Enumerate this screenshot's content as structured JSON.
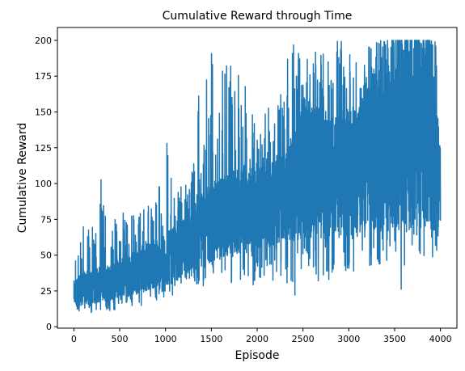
{
  "chart_data": {
    "type": "line",
    "title": "Cumulative Reward through Time",
    "xlabel": "Episode",
    "ylabel": "Cumulative Reward",
    "xlim": [
      -180,
      4180
    ],
    "ylim": [
      -1,
      209
    ],
    "x_ticks": [
      0,
      500,
      1000,
      1500,
      2000,
      2500,
      3000,
      3500,
      4000
    ],
    "y_ticks": [
      0,
      25,
      50,
      75,
      100,
      125,
      150,
      175,
      200
    ],
    "x_tick_labels": [
      "0",
      "500",
      "1000",
      "1500",
      "2000",
      "2500",
      "3000",
      "3500",
      "4000"
    ],
    "y_tick_labels": [
      "0",
      "25",
      "50",
      "75",
      "100",
      "125",
      "150",
      "175",
      "200"
    ],
    "grid": false,
    "legend": "none",
    "series": [
      {
        "color": "#1f77b4",
        "x": [
          0,
          100,
          200,
          300,
          400,
          500,
          600,
          700,
          800,
          900,
          1000,
          1100,
          1200,
          1300,
          1400,
          1500,
          1600,
          1700,
          1800,
          1900,
          2000,
          2100,
          2200,
          2300,
          2400,
          2500,
          2600,
          2700,
          2800,
          2900,
          3000,
          3100,
          3200,
          3300,
          3400,
          3500,
          3600,
          3700,
          3800,
          3900,
          4000
        ],
        "y_min": [
          10,
          9,
          9,
          10,
          11,
          12,
          13,
          14,
          16,
          18,
          20,
          22,
          24,
          26,
          28,
          22,
          23,
          24,
          25,
          26,
          30,
          31,
          33,
          35,
          18,
          38,
          40,
          28,
          30,
          32,
          35,
          36,
          40,
          40,
          42,
          40,
          20,
          45,
          40,
          50,
          40
        ],
        "y_low": [
          14,
          15,
          16,
          17,
          18,
          20,
          21,
          23,
          25,
          27,
          28,
          31,
          34,
          37,
          40,
          45,
          47,
          48,
          50,
          52,
          53,
          55,
          56,
          58,
          60,
          62,
          64,
          62,
          60,
          62,
          63,
          64,
          66,
          65,
          66,
          65,
          64,
          66,
          67,
          68,
          65
        ],
        "y_high": [
          32,
          38,
          40,
          42,
          45,
          48,
          50,
          55,
          58,
          62,
          65,
          70,
          75,
          78,
          95,
          100,
          105,
          108,
          110,
          110,
          112,
          115,
          120,
          125,
          135,
          160,
          160,
          150,
          145,
          150,
          155,
          150,
          180,
          190,
          200,
          200,
          200,
          200,
          200,
          200,
          125
        ],
        "y_max": [
          58,
          72,
          77,
          106,
          70,
          82,
          80,
          84,
          86,
          88,
          149,
          91,
          101,
          110,
          200,
          200,
          183,
          200,
          190,
          164,
          150,
          151,
          160,
          190,
          200,
          200,
          200,
          200,
          200,
          200,
          200,
          200,
          200,
          200,
          200,
          200,
          200,
          200,
          200,
          200,
          200
        ]
      }
    ]
  }
}
